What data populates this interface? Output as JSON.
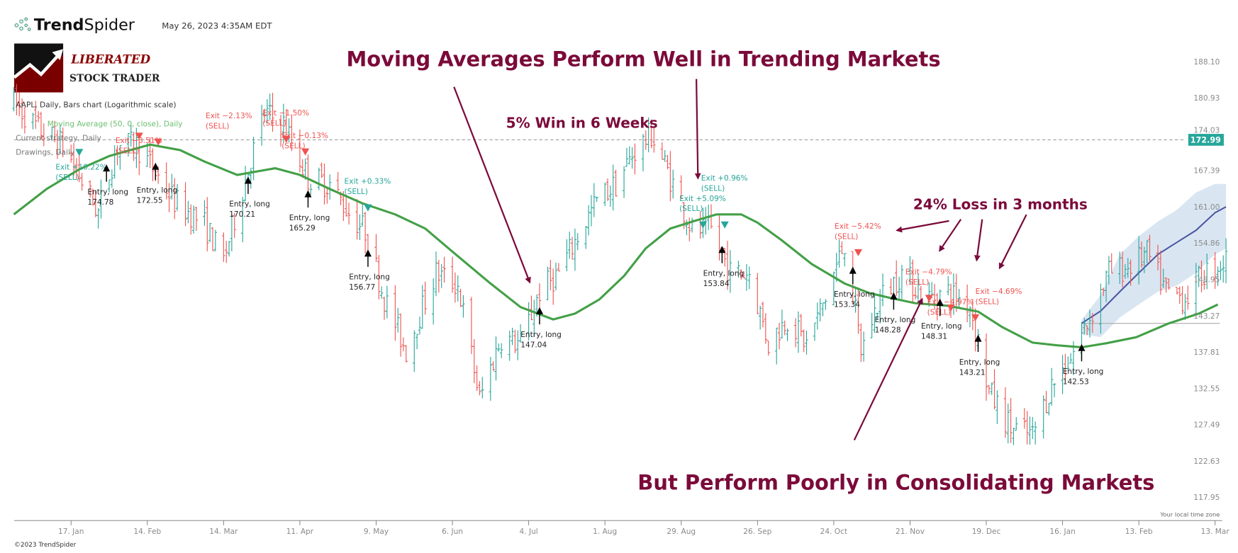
{
  "header": {
    "brand_left": "Trend",
    "brand_right": "Spider",
    "timestamp": "May 26, 2023 4:35AM EDT",
    "logo_line1": "LIBERATED",
    "logo_line2": "STOCK TRADER"
  },
  "legend": {
    "symbol_line": "AAPL, Daily, Bars chart (Logarithmic scale)",
    "ma_line": "Moving Average (50, 0, close), Daily",
    "strategy_line": "Current strategy, Daily",
    "drawings_line": "Drawings, Daily"
  },
  "annotations": {
    "headline": "Moving Averages Perform Well in Trending Markets",
    "win_note": "5% Win in 6 Weeks",
    "loss_note": "24% Loss in 3 months",
    "footer_headline": "But Perform Poorly in Consolidating Markets"
  },
  "footer": {
    "copyright": "©2023 TrendSpider",
    "timezone_note": "Your local time zone"
  },
  "colors": {
    "up": "#26a69a",
    "down": "#ef5350",
    "moving_average": "#43a047",
    "forecast_line": "#4a55a2",
    "forecast_band": "#d5e3f1",
    "annotation": "#7b0a3a",
    "last_price_badge": "#26a69a"
  },
  "chart_data": {
    "type": "ohlc-bars",
    "symbol": "AAPL",
    "scale": "log",
    "ylim": [
      117.95,
      188.1
    ],
    "y_ticks": [
      "188.10",
      "180.93",
      "174.03",
      "167.39",
      "161.00",
      "154.86",
      "148.95",
      "143.27",
      "137.81",
      "132.55",
      "127.49",
      "122.63",
      "117.95"
    ],
    "x_ticks": [
      {
        "date": "2022-01-17",
        "label": "17. Jan"
      },
      {
        "date": "2022-02-14",
        "label": "14. Feb"
      },
      {
        "date": "2022-03-14",
        "label": "14. Mar"
      },
      {
        "date": "2022-04-11",
        "label": "11. Apr"
      },
      {
        "date": "2022-05-09",
        "label": "9. May"
      },
      {
        "date": "2022-06-06",
        "label": "6. Jun"
      },
      {
        "date": "2022-07-04",
        "label": "4. Jul"
      },
      {
        "date": "2022-08-01",
        "label": "1. Aug"
      },
      {
        "date": "2022-08-29",
        "label": "29. Aug"
      },
      {
        "date": "2022-09-26",
        "label": "26. Sep"
      },
      {
        "date": "2022-10-24",
        "label": "24. Oct"
      },
      {
        "date": "2022-11-21",
        "label": "21. Nov"
      },
      {
        "date": "2022-12-19",
        "label": "19. Dec"
      },
      {
        "date": "2023-01-16",
        "label": "16. Jan"
      },
      {
        "date": "2023-02-13",
        "label": "13. Feb"
      },
      {
        "date": "2023-03-13",
        "label": "13. Mar"
      }
    ],
    "last_price": "172.99",
    "approx_price_path": [
      [
        "2021-12-27",
        180
      ],
      [
        "2022-01-05",
        175
      ],
      [
        "2022-01-14",
        172
      ],
      [
        "2022-01-27",
        160
      ],
      [
        "2022-02-03",
        172
      ],
      [
        "2022-02-10",
        172
      ],
      [
        "2022-02-24",
        162
      ],
      [
        "2022-03-07",
        158
      ],
      [
        "2022-03-14",
        152
      ],
      [
        "2022-03-29",
        178
      ],
      [
        "2022-04-05",
        176
      ],
      [
        "2022-04-14",
        166
      ],
      [
        "2022-04-22",
        165
      ],
      [
        "2022-04-29",
        160
      ],
      [
        "2022-05-05",
        157
      ],
      [
        "2022-05-12",
        146
      ],
      [
        "2022-05-20",
        138
      ],
      [
        "2022-05-31",
        150
      ],
      [
        "2022-06-08",
        148
      ],
      [
        "2022-06-16",
        131
      ],
      [
        "2022-06-24",
        140
      ],
      [
        "2022-07-01",
        139
      ],
      [
        "2022-07-08",
        147
      ],
      [
        "2022-07-15",
        150
      ],
      [
        "2022-07-29",
        162
      ],
      [
        "2022-08-05",
        165
      ],
      [
        "2022-08-12",
        171
      ],
      [
        "2022-08-18",
        174
      ],
      [
        "2022-08-26",
        165
      ],
      [
        "2022-09-02",
        157
      ],
      [
        "2022-09-09",
        157
      ],
      [
        "2022-09-16",
        150
      ],
      [
        "2022-09-23",
        150
      ],
      [
        "2022-09-30",
        139
      ],
      [
        "2022-10-07",
        143
      ],
      [
        "2022-10-14",
        139
      ],
      [
        "2022-10-21",
        146
      ],
      [
        "2022-10-28",
        155
      ],
      [
        "2022-11-03",
        138
      ],
      [
        "2022-11-10",
        146
      ],
      [
        "2022-11-18",
        150
      ],
      [
        "2022-11-28",
        146
      ],
      [
        "2022-12-05",
        147
      ],
      [
        "2022-12-13",
        145
      ],
      [
        "2022-12-20",
        132
      ],
      [
        "2022-12-28",
        127
      ],
      [
        "2023-01-05",
        126
      ],
      [
        "2023-01-12",
        133
      ],
      [
        "2023-01-19",
        137
      ],
      [
        "2023-01-26",
        143
      ],
      [
        "2023-02-02",
        150
      ],
      [
        "2023-02-09",
        151
      ],
      [
        "2023-02-16",
        153
      ],
      [
        "2023-02-23",
        147
      ],
      [
        "2023-03-02",
        146
      ],
      [
        "2023-03-09",
        150
      ],
      [
        "2023-03-17",
        152
      ]
    ],
    "moving_average": [
      [
        "2021-12-27",
        159.7
      ],
      [
        "2022-01-08",
        164.1
      ],
      [
        "2022-01-20",
        167.6
      ],
      [
        "2022-01-31",
        170.0
      ],
      [
        "2022-02-15",
        172.1
      ],
      [
        "2022-02-26",
        171.1
      ],
      [
        "2022-03-07",
        169.0
      ],
      [
        "2022-03-19",
        166.6
      ],
      [
        "2022-04-02",
        167.8
      ],
      [
        "2022-04-11",
        166.6
      ],
      [
        "2022-04-22",
        164.1
      ],
      [
        "2022-05-04",
        161.6
      ],
      [
        "2022-05-16",
        159.7
      ],
      [
        "2022-05-27",
        157.3
      ],
      [
        "2022-06-08",
        152.7
      ],
      [
        "2022-06-20",
        148.3
      ],
      [
        "2022-07-01",
        144.6
      ],
      [
        "2022-07-13",
        142.7
      ],
      [
        "2022-07-21",
        143.6
      ],
      [
        "2022-07-30",
        145.8
      ],
      [
        "2022-08-08",
        149.5
      ],
      [
        "2022-08-16",
        154.0
      ],
      [
        "2022-08-25",
        157.3
      ],
      [
        "2022-09-03",
        158.6
      ],
      [
        "2022-09-11",
        159.7
      ],
      [
        "2022-09-20",
        159.7
      ],
      [
        "2022-09-26",
        158.3
      ],
      [
        "2022-10-05",
        155.3
      ],
      [
        "2022-10-16",
        151.4
      ],
      [
        "2022-10-28",
        148.3
      ],
      [
        "2022-11-06",
        146.8
      ],
      [
        "2022-11-14",
        146.0
      ],
      [
        "2022-11-23",
        145.2
      ],
      [
        "2022-12-05",
        144.8
      ],
      [
        "2022-12-16",
        143.9
      ],
      [
        "2022-12-25",
        141.5
      ],
      [
        "2023-01-05",
        139.2
      ],
      [
        "2023-01-14",
        138.8
      ],
      [
        "2023-01-23",
        138.5
      ],
      [
        "2023-02-01",
        139.1
      ],
      [
        "2023-02-12",
        140.0
      ],
      [
        "2023-02-24",
        142.1
      ],
      [
        "2023-03-07",
        143.6
      ],
      [
        "2023-03-14",
        145.0
      ]
    ],
    "forecast": [
      [
        "2023-01-23",
        142.1,
        142.6,
        140.5
      ],
      [
        "2023-01-30",
        144.0,
        146.5,
        140.0
      ],
      [
        "2023-02-06",
        147.0,
        153.0,
        143.0
      ],
      [
        "2023-02-13",
        150.0,
        156.0,
        145.0
      ],
      [
        "2023-02-20",
        153.0,
        158.5,
        147.0
      ],
      [
        "2023-02-27",
        155.0,
        160.5,
        148.0
      ],
      [
        "2023-03-06",
        157.0,
        163.5,
        150.0
      ],
      [
        "2023-03-13",
        160.0,
        165.0,
        153.0
      ],
      [
        "2023-03-17",
        161.0,
        165.0,
        154.0
      ]
    ],
    "forecast_base": {
      "from": "2023-01-23",
      "value": 142.1
    },
    "entries": [
      {
        "date": "2022-01-30",
        "marker_price": 168.5,
        "label": "Entry, long",
        "price": "174.78"
      },
      {
        "date": "2022-02-17",
        "marker_price": 168.8,
        "label": "Entry, long",
        "price": "172.55"
      },
      {
        "date": "2022-03-23",
        "marker_price": 166.3,
        "label": "Entry, long",
        "price": "170.21"
      },
      {
        "date": "2022-04-14",
        "marker_price": 163.9,
        "label": "Entry, long",
        "price": "165.29"
      },
      {
        "date": "2022-05-06",
        "marker_price": 153.8,
        "label": "Entry, long",
        "price": "156.77"
      },
      {
        "date": "2022-07-08",
        "marker_price": 144.6,
        "label": "Entry, long",
        "price": "147.04"
      },
      {
        "date": "2022-09-13",
        "marker_price": 154.4,
        "label": "Entry, long",
        "price": "153.84"
      },
      {
        "date": "2022-10-31",
        "marker_price": 151.0,
        "label": "Entry, long",
        "price": "153.34"
      },
      {
        "date": "2022-11-15",
        "marker_price": 146.9,
        "label": "Entry, long",
        "price": "148.28"
      },
      {
        "date": "2022-12-02",
        "marker_price": 145.9,
        "label": "Entry, long",
        "price": "148.31"
      },
      {
        "date": "2022-12-16",
        "marker_price": 140.4,
        "label": "Entry, long",
        "price": "143.21"
      },
      {
        "date": "2023-01-23",
        "marker_price": 139.0,
        "label": "Entry, long",
        "price": "142.53"
      }
    ],
    "exits": [
      {
        "date": "2022-01-20",
        "marker_price": 170.0,
        "label": "Exit +10.22%",
        "action": "(SELL)",
        "result": "win"
      },
      {
        "date": "2022-02-11",
        "marker_price": 173.0,
        "label": "Exit −3.51%",
        "action": "(SELL)",
        "result": "loss"
      },
      {
        "date": "2022-02-18",
        "marker_price": 171.9,
        "label": "Exit −2.13%",
        "action": "(SELL)",
        "result": "loss"
      },
      {
        "date": "2022-04-06",
        "marker_price": 172.4,
        "label": "Exit −1.50%",
        "action": "(SELL)",
        "result": "loss"
      },
      {
        "date": "2022-04-13",
        "marker_price": 170.1,
        "label": "Exit −0.13%",
        "action": "(SELL)",
        "result": "loss"
      },
      {
        "date": "2022-05-06",
        "marker_price": 160.2,
        "label": "Exit +0.33%",
        "action": "(SELL)",
        "result": "win"
      },
      {
        "date": "2022-09-06",
        "marker_price": 157.3,
        "label": "Exit +5.09%",
        "action": "(SELL)",
        "result": "win"
      },
      {
        "date": "2022-09-14",
        "marker_price": 157.3,
        "label": "Exit +0.96%",
        "action": "(SELL)",
        "result": "win"
      },
      {
        "date": "2022-11-02",
        "marker_price": 152.7,
        "label": "Exit −5.42%",
        "action": "(SELL)",
        "result": "loss"
      },
      {
        "date": "2022-11-28",
        "marker_price": 145.4,
        "label": "Exit −4.79%",
        "action": "(SELL)",
        "result": "loss"
      },
      {
        "date": "2022-12-06",
        "marker_price": 143.9,
        "label": "Exit −4.97%",
        "action": "(SELL)",
        "result": "loss"
      },
      {
        "date": "2022-12-15",
        "marker_price": 142.4,
        "label": "Exit −4.69%",
        "action": "(SELL)",
        "result": "loss"
      }
    ]
  }
}
